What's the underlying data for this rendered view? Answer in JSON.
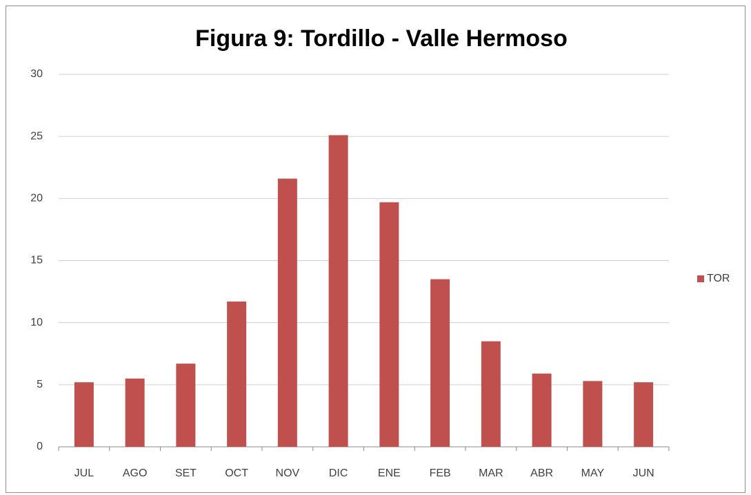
{
  "chart_data": {
    "type": "bar",
    "title": "Figura 9: Tordillo - Valle Hermoso",
    "categories": [
      "JUL",
      "AGO",
      "SET",
      "OCT",
      "NOV",
      "DIC",
      "ENE",
      "FEB",
      "MAR",
      "ABR",
      "MAY",
      "JUN"
    ],
    "series": [
      {
        "name": "TOR",
        "color": "#c0504d",
        "values": [
          5.2,
          5.5,
          6.7,
          11.7,
          21.6,
          25.1,
          19.7,
          13.5,
          8.5,
          5.9,
          5.3,
          5.2
        ]
      }
    ],
    "ylim": [
      0,
      30
    ],
    "yticks": [
      0,
      5,
      10,
      15,
      20,
      25,
      30
    ],
    "grid": true,
    "legend": "right"
  }
}
